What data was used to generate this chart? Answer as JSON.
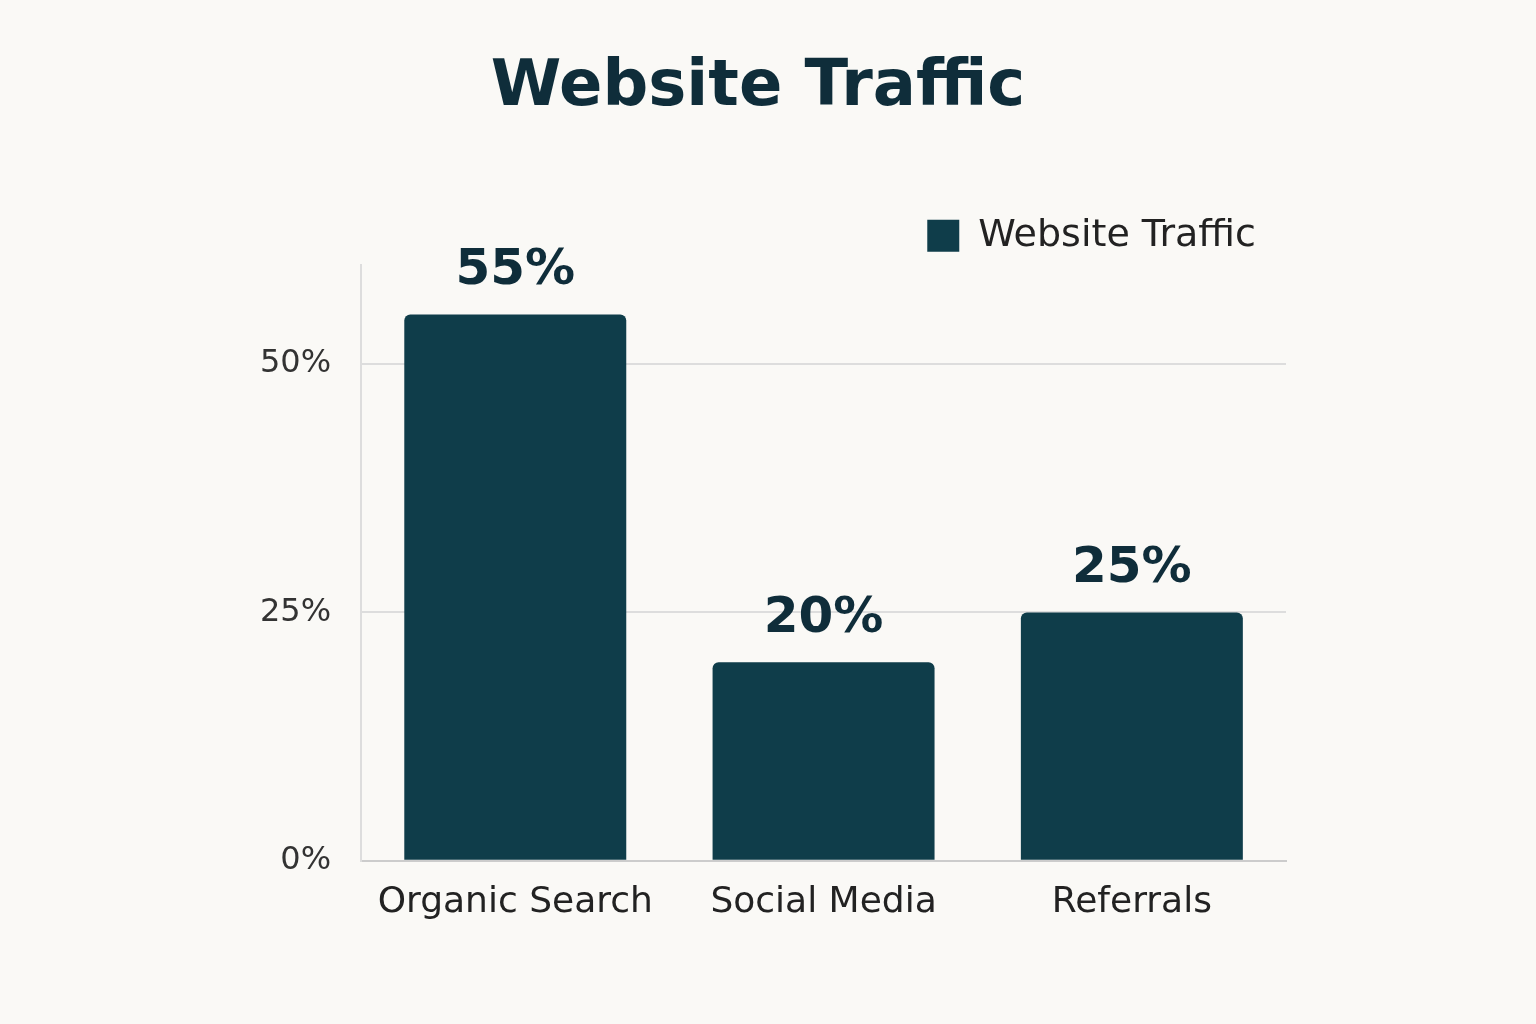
{
  "chart_data": {
    "type": "bar",
    "title": "Website Traffic",
    "categories": [
      "Organic Search",
      "Social Media",
      "Referrals"
    ],
    "series": [
      {
        "name": "Website Traffic",
        "color": "#0f3d4a",
        "values": [
          55,
          20,
          25
        ],
        "value_labels": [
          "55%",
          "20%",
          "25%"
        ]
      }
    ],
    "ylim": [
      0,
      60
    ],
    "yticks": [
      {
        "value": 0,
        "label": "0%"
      },
      {
        "value": 25,
        "label": "25%"
      },
      {
        "value": 50,
        "label": "50%"
      }
    ],
    "grid": "y",
    "legend": "top right"
  }
}
